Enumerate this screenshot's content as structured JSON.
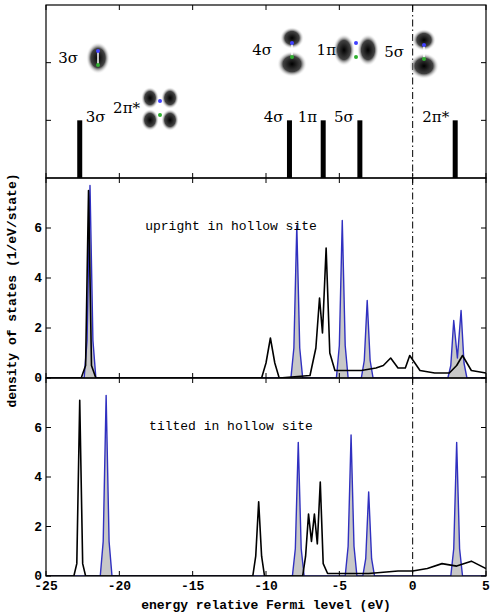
{
  "chart_data": [
    {
      "type": "bar",
      "categories": [
        "3σ",
        "4σ",
        "1π",
        "5σ",
        "2π*"
      ],
      "x": [
        -22.7,
        -8.4,
        -6.1,
        -3.6,
        2.9
      ],
      "values": [
        1,
        1,
        1,
        1,
        1
      ],
      "color": "#000000",
      "xlim": [
        -25,
        5
      ],
      "xticks": [
        -25,
        -20,
        -15,
        -10,
        -5,
        0,
        5
      ],
      "ylim": [
        0,
        3
      ],
      "yticks": [
        1,
        2
      ],
      "tick_labels": false,
      "fermi_level": 0
    },
    {
      "type": "line",
      "annotation": "upright in hollow site",
      "y_label": "density of states (1/eV/state)",
      "xlim": [
        -25,
        5
      ],
      "xticks": [
        -25,
        -20,
        -15,
        -10,
        -5,
        0,
        5
      ],
      "ylim": [
        0,
        8
      ],
      "yticks": [
        0,
        2,
        4,
        6
      ],
      "tick_labels": "y",
      "fermi_level": 0,
      "series": [
        {
          "color": "#3030c0",
          "type": "area",
          "x": [
            -25,
            -22.4,
            -22.2,
            -22.0,
            -21.8,
            -21.6,
            -8.3,
            -8.1,
            -7.9,
            -7.7,
            -7.5,
            -5.2,
            -5.0,
            -4.8,
            -4.6,
            -4.4,
            -3.5,
            -3.3,
            -3.1,
            -2.9,
            -2.7,
            2.4,
            2.6,
            2.8,
            3.05,
            3.3,
            3.5,
            3.7,
            5
          ],
          "values": [
            0,
            0,
            1.5,
            7.7,
            1.5,
            0,
            0,
            1.2,
            6.1,
            1.2,
            0,
            0,
            1.3,
            6.3,
            1.3,
            0,
            0,
            0.7,
            3.1,
            0.7,
            0,
            0,
            0.5,
            2.3,
            0.8,
            2.7,
            0.6,
            0,
            0
          ]
        },
        {
          "color": "#000000",
          "type": "line",
          "x": [
            -25,
            -22.6,
            -22.3,
            -22.1,
            -21.9,
            -21.6,
            -10.3,
            -10.0,
            -9.7,
            -9.4,
            -9.1,
            -7.0,
            -6.6,
            -6.35,
            -6.15,
            -5.9,
            -5.65,
            -5.3,
            -4.5,
            -3.5,
            -2.5,
            -2.0,
            -1.5,
            -1.0,
            -0.5,
            -0.2,
            0.5,
            1.5,
            2.5,
            3.0,
            3.4,
            4.0,
            5
          ],
          "values": [
            0,
            0,
            0.5,
            7.5,
            0.5,
            0,
            0,
            0.6,
            1.6,
            0.6,
            0,
            0.1,
            1.2,
            3.2,
            1.8,
            5.2,
            1.0,
            0.3,
            0.3,
            0.3,
            0.4,
            0.5,
            0.8,
            0.4,
            0.4,
            0.9,
            0.3,
            0.2,
            0.2,
            0.5,
            0.9,
            0.3,
            0.2
          ]
        }
      ]
    },
    {
      "type": "line",
      "annotation": "tilted in hollow site",
      "x_label": "energy relative Fermi level (eV)",
      "xlim": [
        -25,
        5
      ],
      "xticks": [
        -25,
        -20,
        -15,
        -10,
        -5,
        0,
        5
      ],
      "ylim": [
        0,
        8
      ],
      "yticks": [
        0,
        2,
        4,
        6
      ],
      "tick_labels": true,
      "fermi_level": 0,
      "series": [
        {
          "color": "#3030c0",
          "type": "area",
          "x": [
            -25,
            -21.3,
            -21.1,
            -20.9,
            -20.7,
            -20.5,
            -8.2,
            -8.0,
            -7.8,
            -7.6,
            -7.4,
            -4.6,
            -4.4,
            -4.2,
            -4.0,
            -3.8,
            -3.4,
            -3.2,
            -3.0,
            -2.8,
            -2.6,
            2.6,
            2.8,
            3.0,
            3.2,
            3.4,
            5
          ],
          "values": [
            0,
            0,
            1.4,
            7.3,
            1.4,
            0,
            0,
            1.1,
            5.4,
            1.1,
            0,
            0,
            1.2,
            5.7,
            1.2,
            0,
            0,
            0.7,
            3.4,
            0.7,
            0,
            0,
            1.1,
            5.4,
            1.1,
            0,
            0
          ]
        },
        {
          "color": "#000000",
          "type": "line",
          "x": [
            -25,
            -23.1,
            -22.9,
            -22.7,
            -22.5,
            -22.3,
            -10.9,
            -10.7,
            -10.5,
            -10.3,
            -10.1,
            -7.5,
            -7.3,
            -7.1,
            -6.9,
            -6.7,
            -6.5,
            -6.3,
            -6.1,
            -5.8,
            -3,
            -1,
            0,
            1,
            2,
            3,
            4,
            5
          ],
          "values": [
            0,
            0,
            0.5,
            7.1,
            0.5,
            0,
            0,
            0.8,
            3.0,
            0.8,
            0,
            0,
            0.8,
            2.5,
            1.4,
            2.5,
            1.3,
            3.8,
            0.5,
            0.1,
            0.1,
            0.2,
            0.2,
            0.3,
            0.5,
            0.4,
            0.6,
            0.3
          ]
        }
      ]
    }
  ]
}
